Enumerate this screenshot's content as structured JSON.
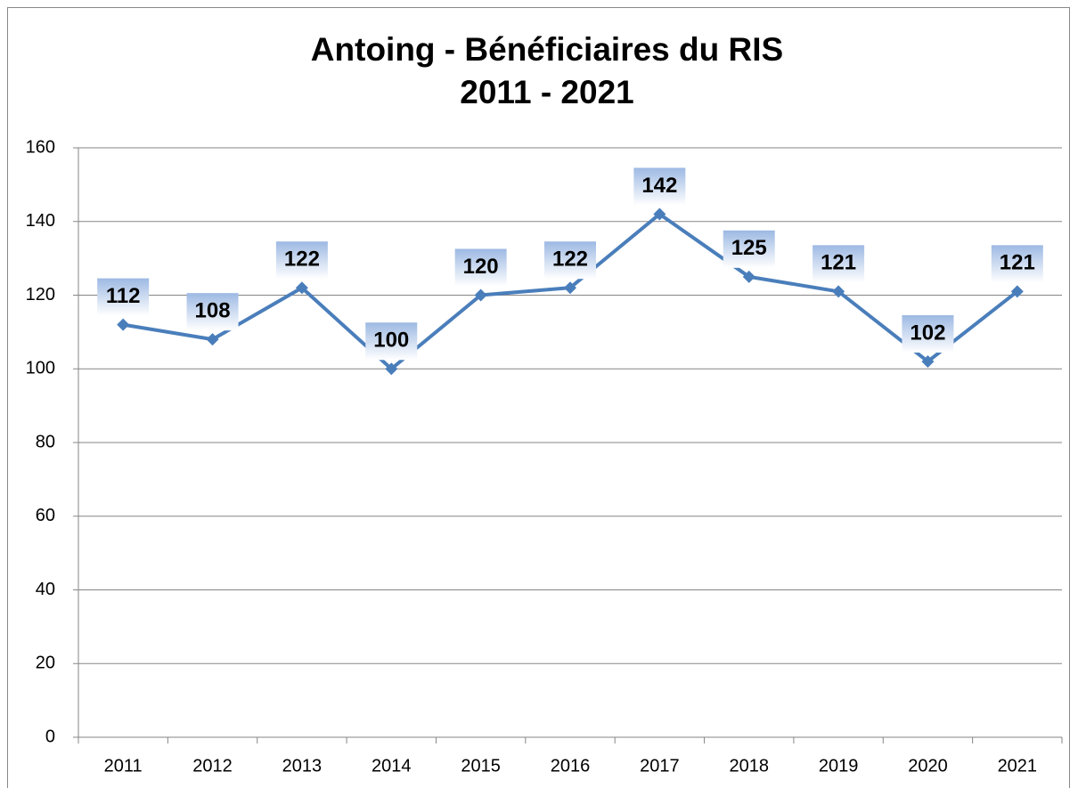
{
  "chart_data": {
    "type": "line",
    "title": [
      "Antoing - Bénéficiaires du RIS",
      "2011 - 2021"
    ],
    "categories": [
      "2011",
      "2012",
      "2013",
      "2014",
      "2015",
      "2016",
      "2017",
      "2018",
      "2019",
      "2020",
      "2021"
    ],
    "series": [
      {
        "name": "Bénéficiaires du RIS",
        "color": "#4a7ebb",
        "values": [
          112,
          108,
          122,
          100,
          120,
          122,
          142,
          125,
          121,
          102,
          121
        ]
      }
    ],
    "ylim": [
      0,
      160
    ],
    "yticks": [
      0,
      20,
      40,
      60,
      80,
      100,
      120,
      140,
      160
    ],
    "grid": true
  }
}
